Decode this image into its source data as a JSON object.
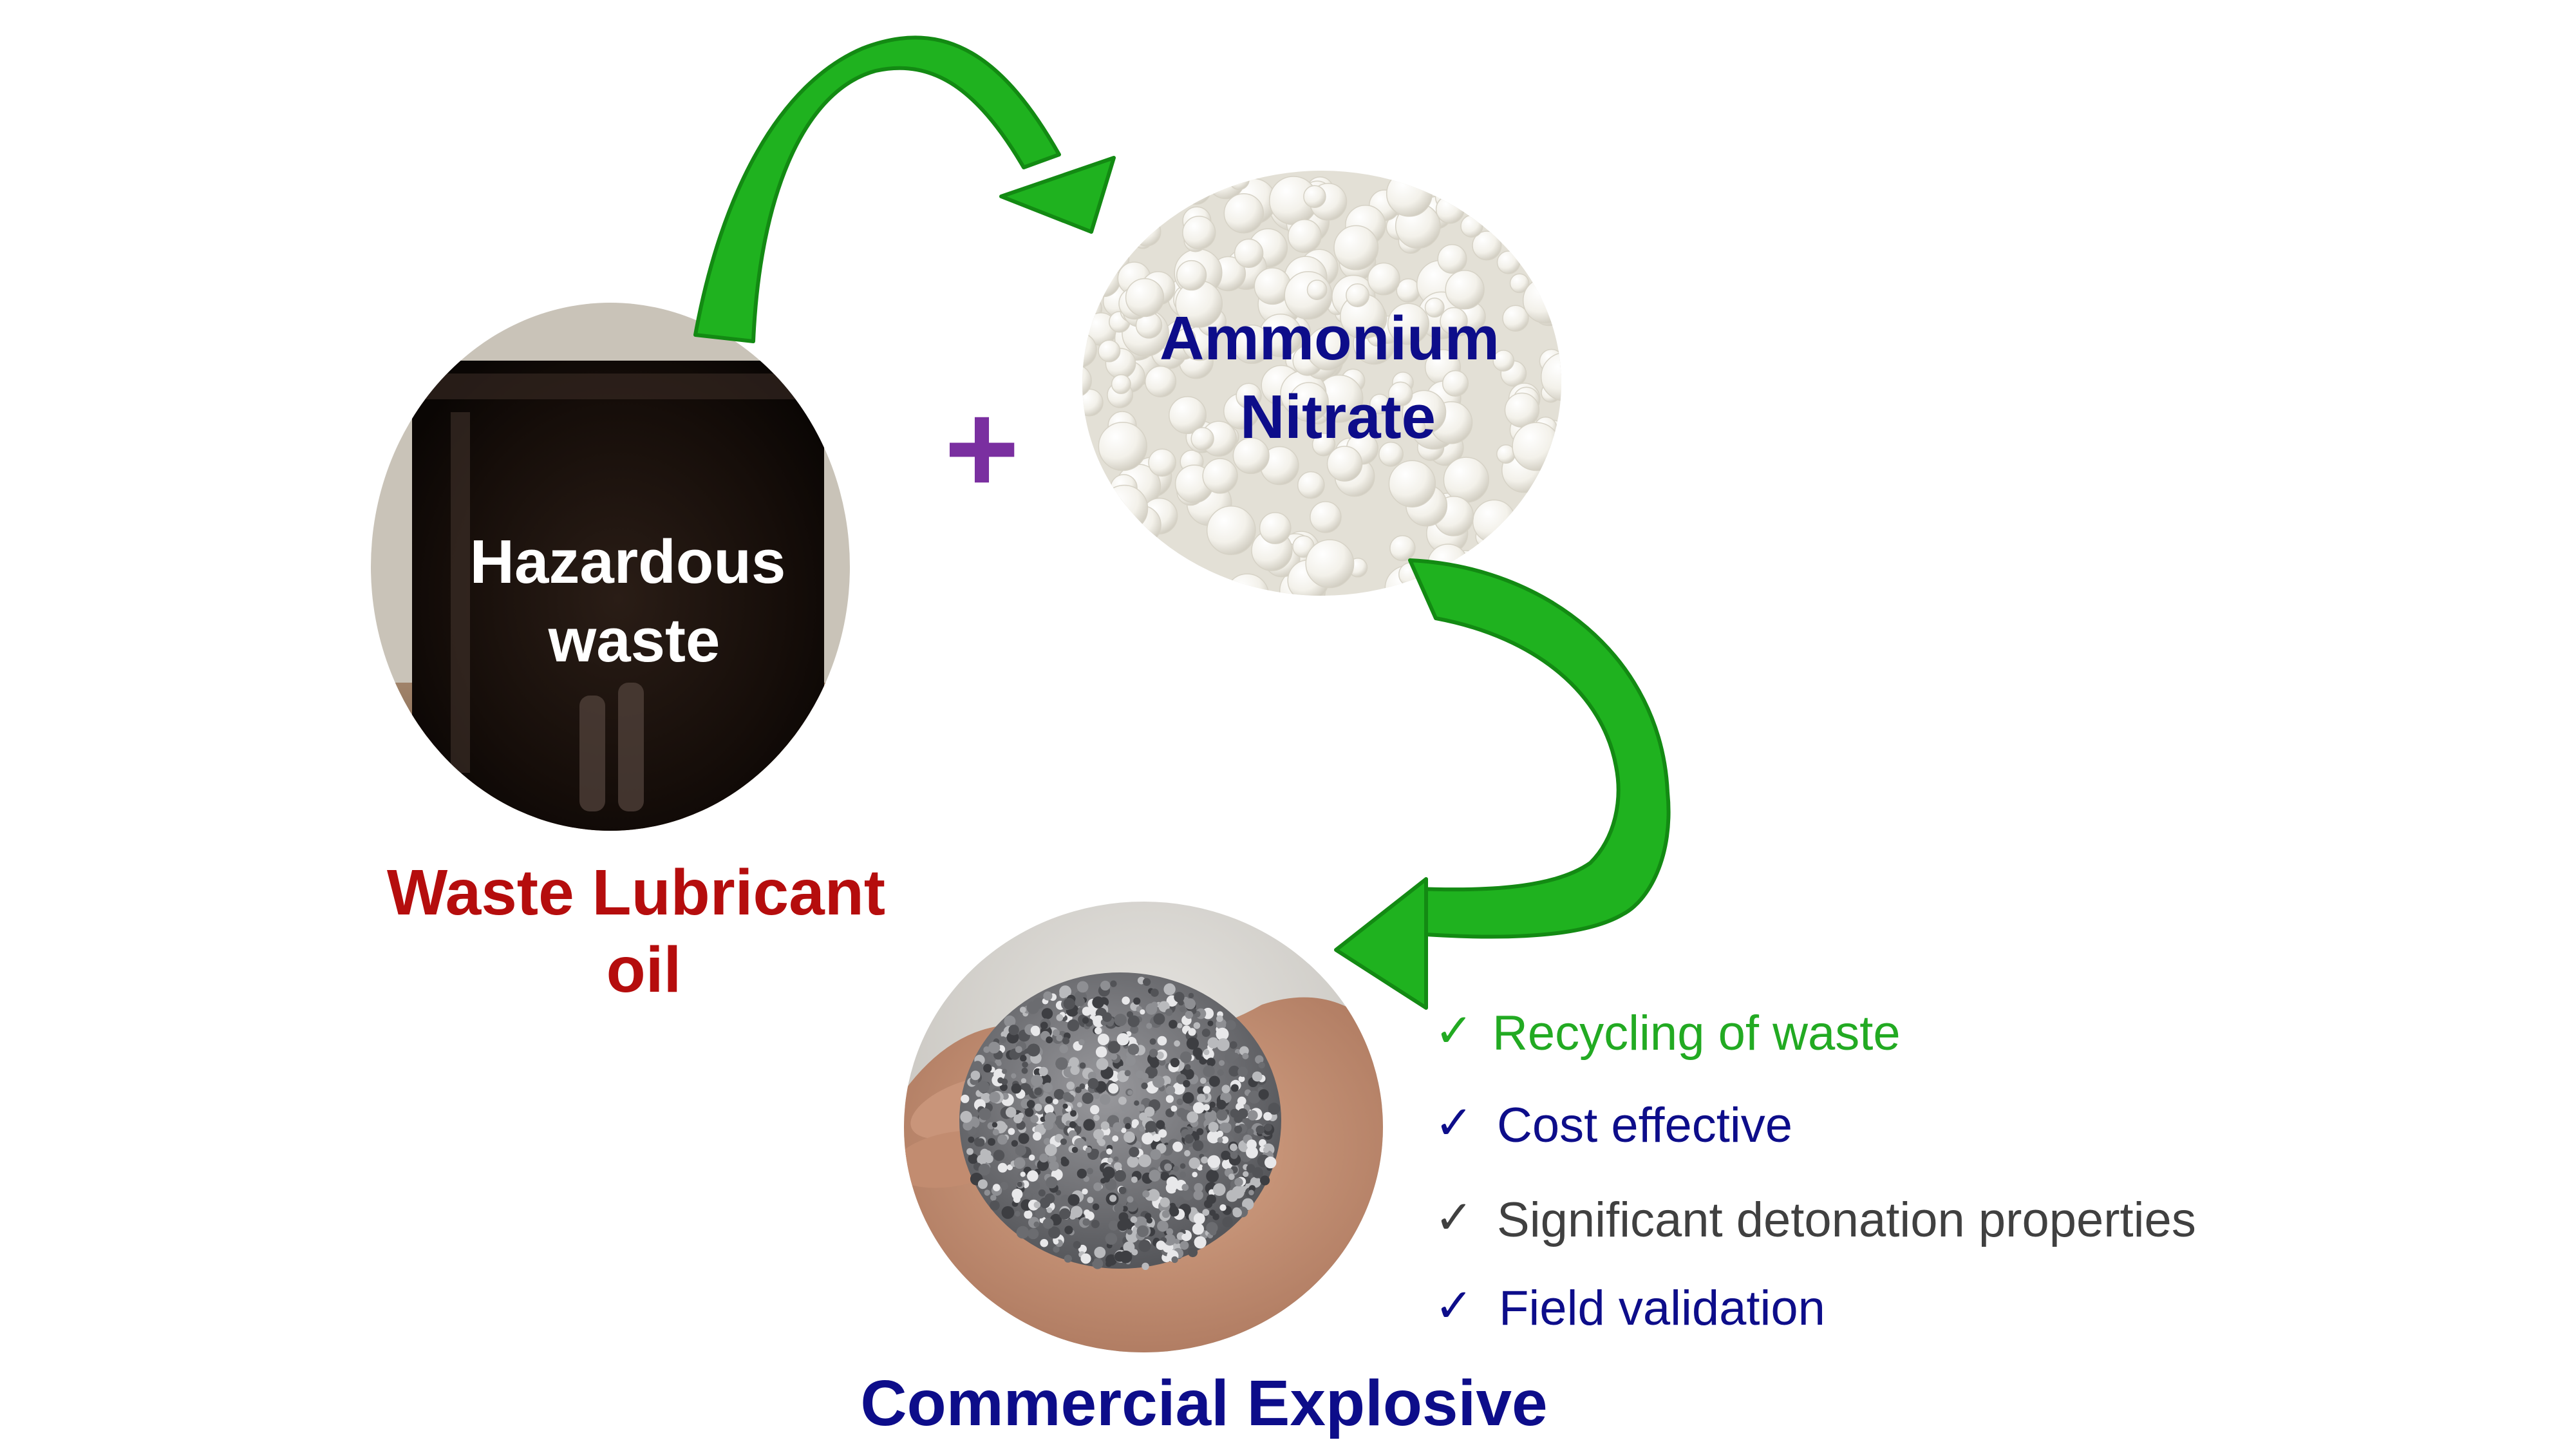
{
  "nodes": {
    "waste_oil": {
      "image_text": [
        "Hazardous",
        "waste"
      ],
      "caption": [
        "Waste Lubricant",
        "oil"
      ]
    },
    "ammonium_nitrate": {
      "image_text": [
        "Ammonium",
        "Nitrate"
      ]
    },
    "explosive": {
      "caption": "Commercial Explosive"
    }
  },
  "operator": "+",
  "benefits": [
    {
      "mark": "✓",
      "text": "Recycling of waste",
      "color": "#22aa22"
    },
    {
      "mark": "✓",
      "text": "Cost effective",
      "color": "#0d0d8a"
    },
    {
      "mark": "✓",
      "text": "Significant detonation properties",
      "color": "#404040"
    },
    {
      "mark": "✓",
      "text": "Field validation",
      "color": "#0d0d8a"
    }
  ],
  "colors": {
    "arrow_green": "#1fb21f",
    "arrow_green_dark": "#138a13",
    "caption_red": "#b50d0d",
    "caption_navy": "#0d0d8a",
    "plus_purple": "#7a2fa0",
    "overlay_white": "#ffffff"
  }
}
